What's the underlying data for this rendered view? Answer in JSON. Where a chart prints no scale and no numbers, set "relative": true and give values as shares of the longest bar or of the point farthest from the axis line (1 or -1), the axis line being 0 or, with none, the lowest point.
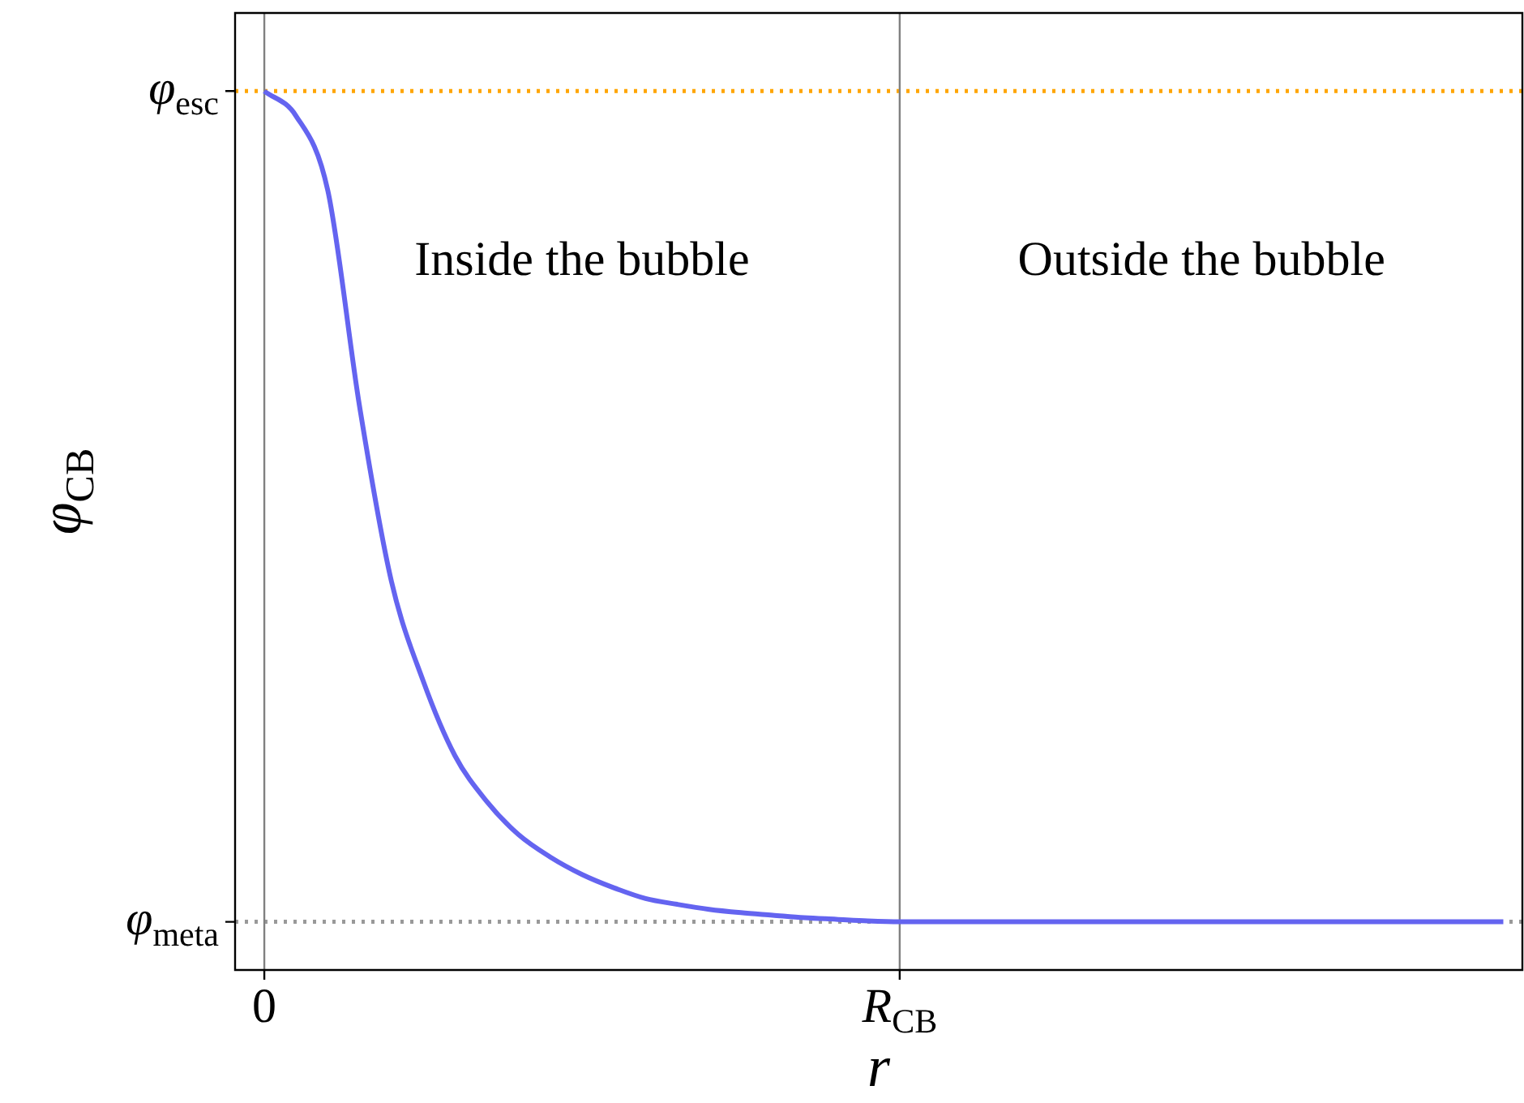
{
  "chart_data": {
    "type": "line",
    "xlabel": "r",
    "ylabel": "φ$_{CB}$",
    "relative": true,
    "categories": [
      "0",
      null,
      null,
      null,
      null,
      null,
      null,
      null,
      null,
      null,
      null,
      null,
      null,
      null,
      null,
      null,
      null,
      null,
      null,
      null,
      "R$_{CB}$",
      null,
      null,
      null,
      null,
      null,
      null,
      null,
      null,
      null,
      null,
      null,
      null,
      null,
      null,
      null,
      null,
      null,
      null,
      null
    ],
    "series": [
      {
        "color": "#6464f0",
        "values": [
          1,
          0.97,
          0.88,
          0.62,
          0.41,
          0.29,
          0.2,
          0.145,
          0.105,
          0.078,
          0.057,
          0.041,
          0.028,
          0.021,
          0.015,
          0.011,
          0.008,
          0.005,
          0.003,
          0.001,
          0,
          0,
          0,
          0,
          0,
          0,
          0,
          0,
          0,
          0,
          0,
          0,
          0,
          0,
          0,
          0,
          0,
          0,
          0,
          0
        ]
      }
    ],
    "ref_lines": [
      {
        "axis": "y",
        "value": 1,
        "label": "φ$_{esc}$",
        "color": "#ffa500",
        "line_style": "dotted"
      },
      {
        "axis": "y",
        "value": 0,
        "label": "φ$_{meta}$",
        "color": "#999999",
        "line_style": "dotted"
      },
      {
        "axis": "x",
        "value": "0",
        "label": null,
        "color": "#808080",
        "line_style": "solid"
      },
      {
        "axis": "x",
        "value": "R$_{CB}$",
        "label": null,
        "color": "#808080",
        "line_style": "solid"
      }
    ],
    "annotations": [
      "Inside the bubble",
      "Outside the bubble"
    ],
    "legend": false,
    "marker": "none",
    "line_style": "solid"
  }
}
